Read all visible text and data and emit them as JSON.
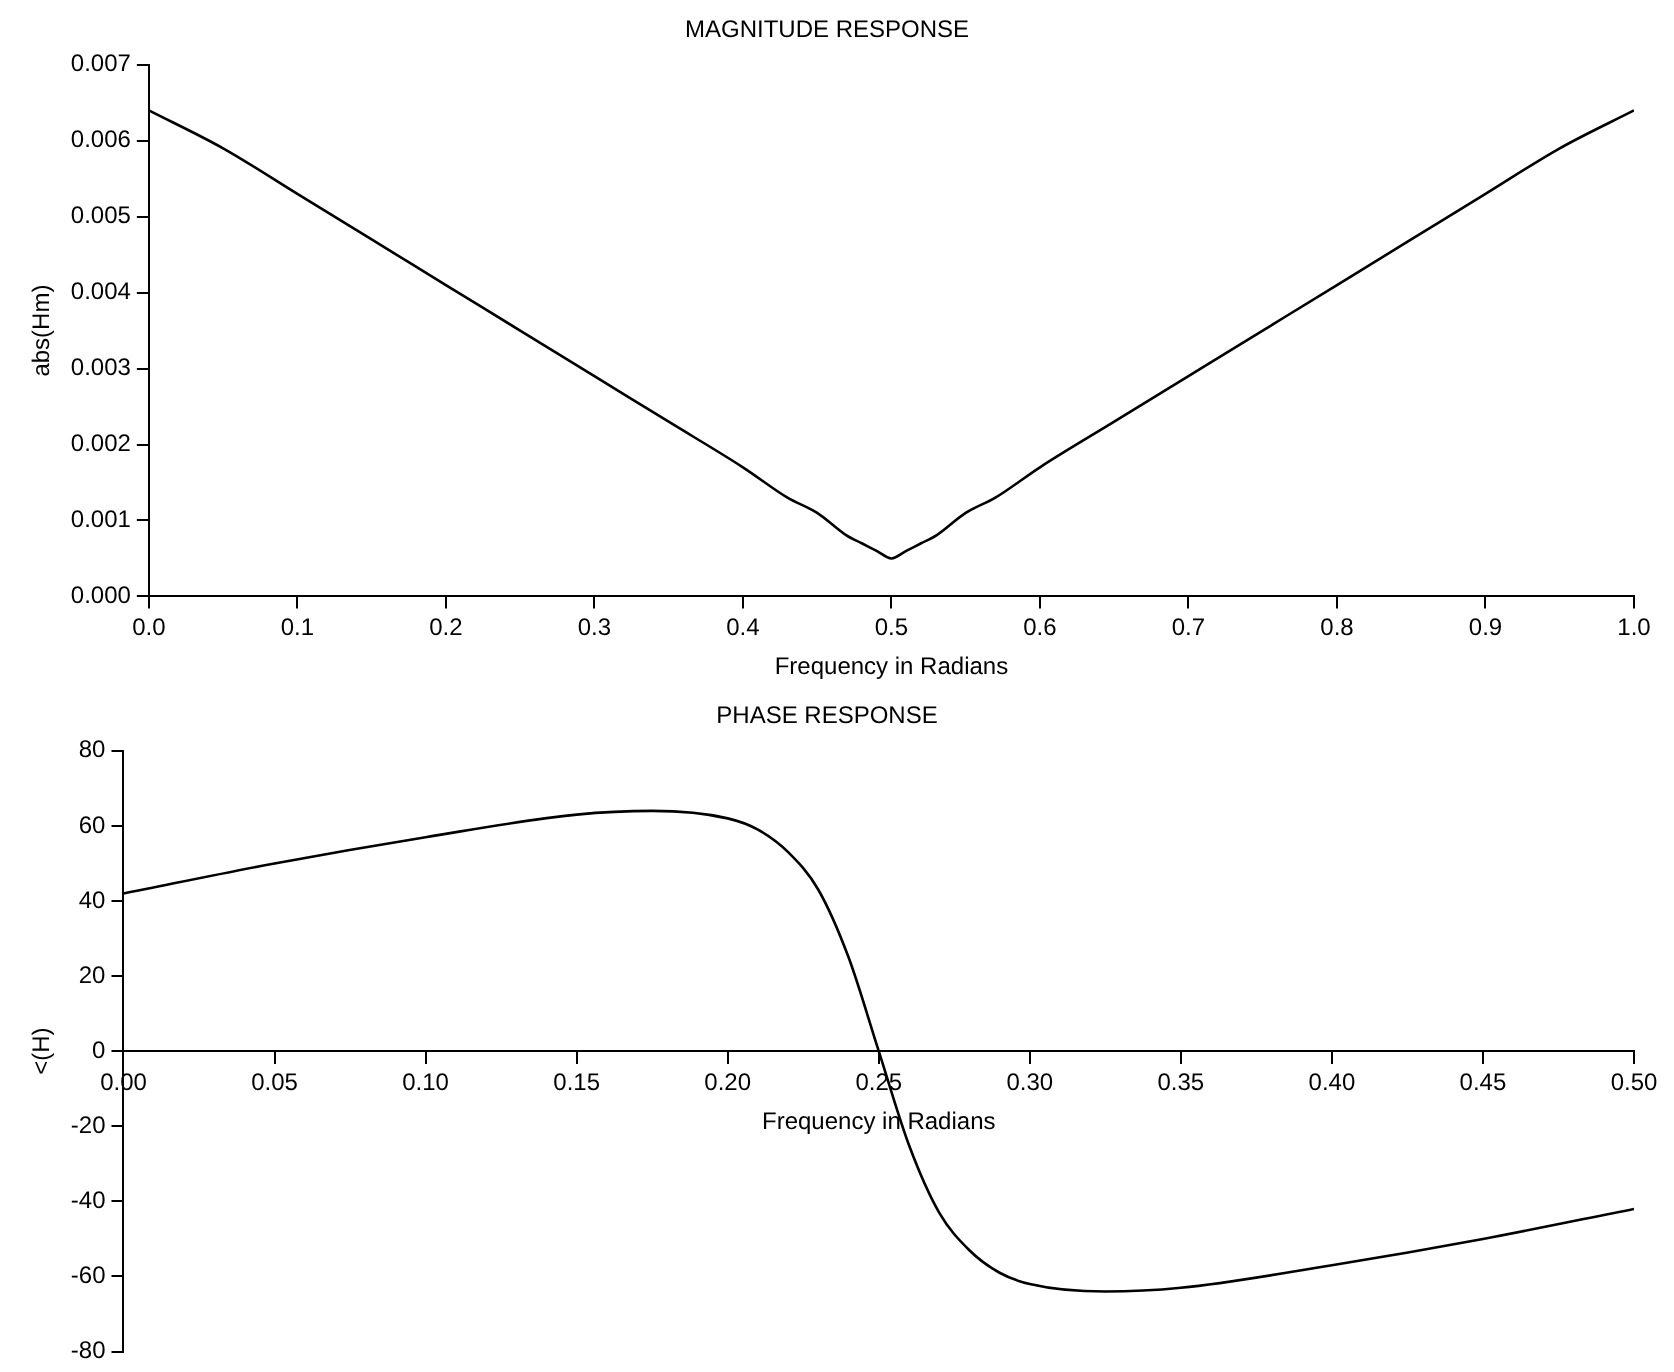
{
  "chart_data": [
    {
      "type": "line",
      "title": "MAGNITUDE RESPONSE",
      "xlabel": "Frequency in Radians",
      "ylabel": "abs(Hm)",
      "color": "#000000",
      "marker": "none",
      "x": [
        0,
        0.05,
        0.1,
        0.15,
        0.2,
        0.25,
        0.3,
        0.35,
        0.4,
        0.43,
        0.45,
        0.47,
        0.48,
        0.49,
        0.5,
        0.51,
        0.52,
        0.53,
        0.55,
        0.57,
        0.6,
        0.65,
        0.7,
        0.75,
        0.8,
        0.85,
        0.9,
        0.95,
        1.0
      ],
      "values": [
        0.0064,
        0.0059,
        0.0053,
        0.0047,
        0.0041,
        0.0035,
        0.0029,
        0.0023,
        0.0017,
        0.0013,
        0.0011,
        0.0008,
        0.0007,
        0.0006,
        0.0005,
        0.0006,
        0.0007,
        0.0008,
        0.0011,
        0.0013,
        0.0017,
        0.0023,
        0.0029,
        0.0035,
        0.0041,
        0.0047,
        0.0053,
        0.0059,
        0.0064
      ],
      "xlim": [
        0,
        1
      ],
      "ylim": [
        0,
        0.007
      ],
      "xticks": [
        {
          "value": 0,
          "label": "0.0"
        },
        {
          "value": 0.1,
          "label": "0.1"
        },
        {
          "value": 0.2,
          "label": "0.2"
        },
        {
          "value": 0.3,
          "label": "0.3"
        },
        {
          "value": 0.4,
          "label": "0.4"
        },
        {
          "value": 0.5,
          "label": "0.5"
        },
        {
          "value": 0.6,
          "label": "0.6"
        },
        {
          "value": 0.7,
          "label": "0.7"
        },
        {
          "value": 0.8,
          "label": "0.8"
        },
        {
          "value": 0.9,
          "label": "0.9"
        },
        {
          "value": 1,
          "label": "1.0"
        }
      ],
      "yticks": [
        {
          "value": 0,
          "label": "0.000"
        },
        {
          "value": 0.001,
          "label": "0.001"
        },
        {
          "value": 0.002,
          "label": "0.002"
        },
        {
          "value": 0.003,
          "label": "0.003"
        },
        {
          "value": 0.004,
          "label": "0.004"
        },
        {
          "value": 0.005,
          "label": "0.005"
        },
        {
          "value": 0.006,
          "label": "0.006"
        },
        {
          "value": 0.007,
          "label": "0.007"
        }
      ]
    },
    {
      "type": "line",
      "title": "PHASE RESPONSE",
      "xlabel": "Frequency in Radians",
      "ylabel": "<(H)",
      "color": "#000000",
      "marker": "none",
      "x": [
        0,
        0.05,
        0.1,
        0.15,
        0.175,
        0.2,
        0.21,
        0.22,
        0.23,
        0.24,
        0.25,
        0.26,
        0.27,
        0.28,
        0.29,
        0.3,
        0.325,
        0.35,
        0.4,
        0.45,
        0.5
      ],
      "values": [
        42,
        50,
        57,
        63,
        64,
        62,
        59,
        53,
        43,
        25,
        0,
        -25,
        -43,
        -53,
        -59,
        -62,
        -64,
        -63,
        -57,
        -50,
        -42
      ],
      "xlim": [
        0,
        0.5
      ],
      "ylim": [
        -80,
        80
      ],
      "xticks": [
        {
          "value": 0,
          "label": "0.00"
        },
        {
          "value": 0.05,
          "label": "0.05"
        },
        {
          "value": 0.1,
          "label": "0.10"
        },
        {
          "value": 0.15,
          "label": "0.15"
        },
        {
          "value": 0.2,
          "label": "0.20"
        },
        {
          "value": 0.25,
          "label": "0.25"
        },
        {
          "value": 0.3,
          "label": "0.30"
        },
        {
          "value": 0.35,
          "label": "0.35"
        },
        {
          "value": 0.4,
          "label": "0.40"
        },
        {
          "value": 0.45,
          "label": "0.45"
        },
        {
          "value": 0.5,
          "label": "0.50"
        }
      ],
      "yticks": [
        -80,
        -60,
        -40,
        -20,
        0,
        20,
        40,
        60,
        80
      ]
    }
  ]
}
